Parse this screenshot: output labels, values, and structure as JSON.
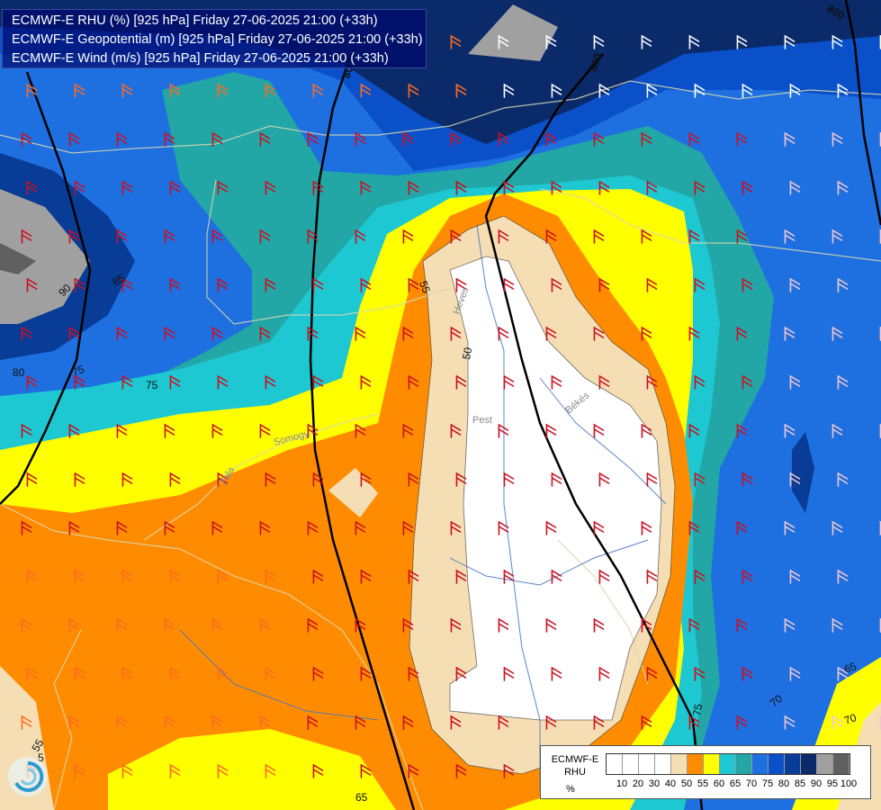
{
  "title_lines": [
    "ECMWF-E RHU (%) [925 hPa] Friday 27-06-2025 21:00 (+33h)",
    "ECMWF-E Geopotential (m) [925 hPa] Friday 27-06-2025 21:00 (+33h)",
    "ECMWF-E Wind (m/s) [925 hPa] Friday 27-06-2025 21:00 (+33h)"
  ],
  "legend": {
    "model": "ECMWF-E",
    "variable": "RHU",
    "unit": "%",
    "ticks": [
      "10",
      "20",
      "30",
      "40",
      "50",
      "55",
      "60",
      "65",
      "70",
      "75",
      "80",
      "85",
      "90",
      "95",
      "100"
    ],
    "colors": [
      "#ffffff",
      "#ffffff",
      "#ffffff",
      "#ffffff",
      "#f5deb3",
      "#ff8c00",
      "#ffff00",
      "#1ec8d2",
      "#22a6a6",
      "#1e6fe0",
      "#0a50c8",
      "#083c96",
      "#0a2a6a",
      "#a0a0a0",
      "#606060"
    ]
  },
  "contour_labels": {
    "geopotential": [
      "800",
      "800",
      "800",
      "75",
      "75",
      "65"
    ],
    "rhu": [
      "55",
      "50",
      "85",
      "90",
      "80",
      "75",
      "70",
      "65",
      "70",
      "55",
      "5"
    ]
  },
  "place_labels": [
    "Pest",
    "Békés",
    "Zala",
    "Somogy",
    "Heves"
  ]
}
